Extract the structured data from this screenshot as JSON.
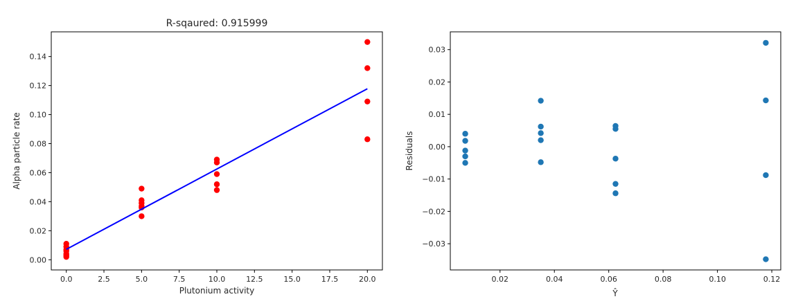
{
  "chart_data": [
    {
      "type": "scatter",
      "title": "R-sqaured: 0.915999",
      "xlabel": "Plutonium activity",
      "ylabel": "Alpha particle rate",
      "xlim": [
        -0.999,
        20.999
      ],
      "ylim": [
        -0.007,
        0.157
      ],
      "xticks": [
        0.0,
        2.5,
        5.0,
        7.5,
        10.0,
        12.5,
        15.0,
        17.5,
        20.0
      ],
      "xtick_labels": [
        "0.0",
        "2.5",
        "5.0",
        "7.5",
        "10.0",
        "12.5",
        "15.0",
        "17.5",
        "20.0"
      ],
      "yticks": [
        0.0,
        0.02,
        0.04,
        0.06,
        0.08,
        0.1,
        0.12,
        0.14
      ],
      "ytick_labels": [
        "0.00",
        "0.02",
        "0.04",
        "0.06",
        "0.08",
        "0.10",
        "0.12",
        "0.14"
      ],
      "grid": false,
      "colors": {
        "points": "#ff0000",
        "fit": "#0000ff"
      },
      "points": [
        {
          "x": 0,
          "y": 0.011
        },
        {
          "x": 0,
          "y": 0.009
        },
        {
          "x": 0,
          "y": 0.007
        },
        {
          "x": 0,
          "y": 0.006
        },
        {
          "x": 0,
          "y": 0.004
        },
        {
          "x": 0,
          "y": 0.003
        },
        {
          "x": 0,
          "y": 0.002
        },
        {
          "x": 5,
          "y": 0.049
        },
        {
          "x": 5,
          "y": 0.041
        },
        {
          "x": 5,
          "y": 0.039
        },
        {
          "x": 5,
          "y": 0.037
        },
        {
          "x": 5,
          "y": 0.036
        },
        {
          "x": 5,
          "y": 0.03
        },
        {
          "x": 10,
          "y": 0.069
        },
        {
          "x": 10,
          "y": 0.067
        },
        {
          "x": 10,
          "y": 0.059
        },
        {
          "x": 10,
          "y": 0.052
        },
        {
          "x": 10,
          "y": 0.048
        },
        {
          "x": 20,
          "y": 0.15
        },
        {
          "x": 20,
          "y": 0.132
        },
        {
          "x": 20,
          "y": 0.109
        },
        {
          "x": 20,
          "y": 0.083
        }
      ],
      "fit_line": {
        "x": [
          0,
          20
        ],
        "y": [
          0.0072,
          0.1178
        ]
      }
    },
    {
      "type": "scatter",
      "title": "",
      "xlabel": "Ŷ",
      "ylabel": "Residuals",
      "xlim": [
        0.0017,
        0.1233
      ],
      "ylim": [
        -0.0381,
        0.0355
      ],
      "xticks": [
        0.02,
        0.04,
        0.06,
        0.08,
        0.1,
        0.12
      ],
      "xtick_labels": [
        "0.02",
        "0.04",
        "0.06",
        "0.08",
        "0.10",
        "0.12"
      ],
      "yticks": [
        -0.03,
        -0.02,
        -0.01,
        0.0,
        0.01,
        0.02,
        0.03
      ],
      "ytick_labels": [
        "−0.03",
        "−0.02",
        "−0.01",
        "0.00",
        "0.01",
        "0.02",
        "0.03"
      ],
      "grid": false,
      "colors": {
        "points": "#1f77b4"
      },
      "points": [
        {
          "x": 0.0072,
          "y": 0.004
        },
        {
          "x": 0.0072,
          "y": 0.0018
        },
        {
          "x": 0.0072,
          "y": -0.0012
        },
        {
          "x": 0.0072,
          "y": -0.003
        },
        {
          "x": 0.0072,
          "y": -0.005
        },
        {
          "x": 0.035,
          "y": 0.0142
        },
        {
          "x": 0.035,
          "y": 0.0062
        },
        {
          "x": 0.035,
          "y": 0.0042
        },
        {
          "x": 0.035,
          "y": 0.002
        },
        {
          "x": 0.035,
          "y": -0.0048
        },
        {
          "x": 0.0625,
          "y": 0.0064
        },
        {
          "x": 0.0625,
          "y": 0.0055
        },
        {
          "x": 0.0625,
          "y": -0.0037
        },
        {
          "x": 0.0625,
          "y": -0.0115
        },
        {
          "x": 0.0625,
          "y": -0.0144
        },
        {
          "x": 0.1178,
          "y": 0.0321
        },
        {
          "x": 0.1178,
          "y": 0.0143
        },
        {
          "x": 0.1178,
          "y": -0.0088
        },
        {
          "x": 0.1178,
          "y": -0.0348
        }
      ]
    }
  ]
}
